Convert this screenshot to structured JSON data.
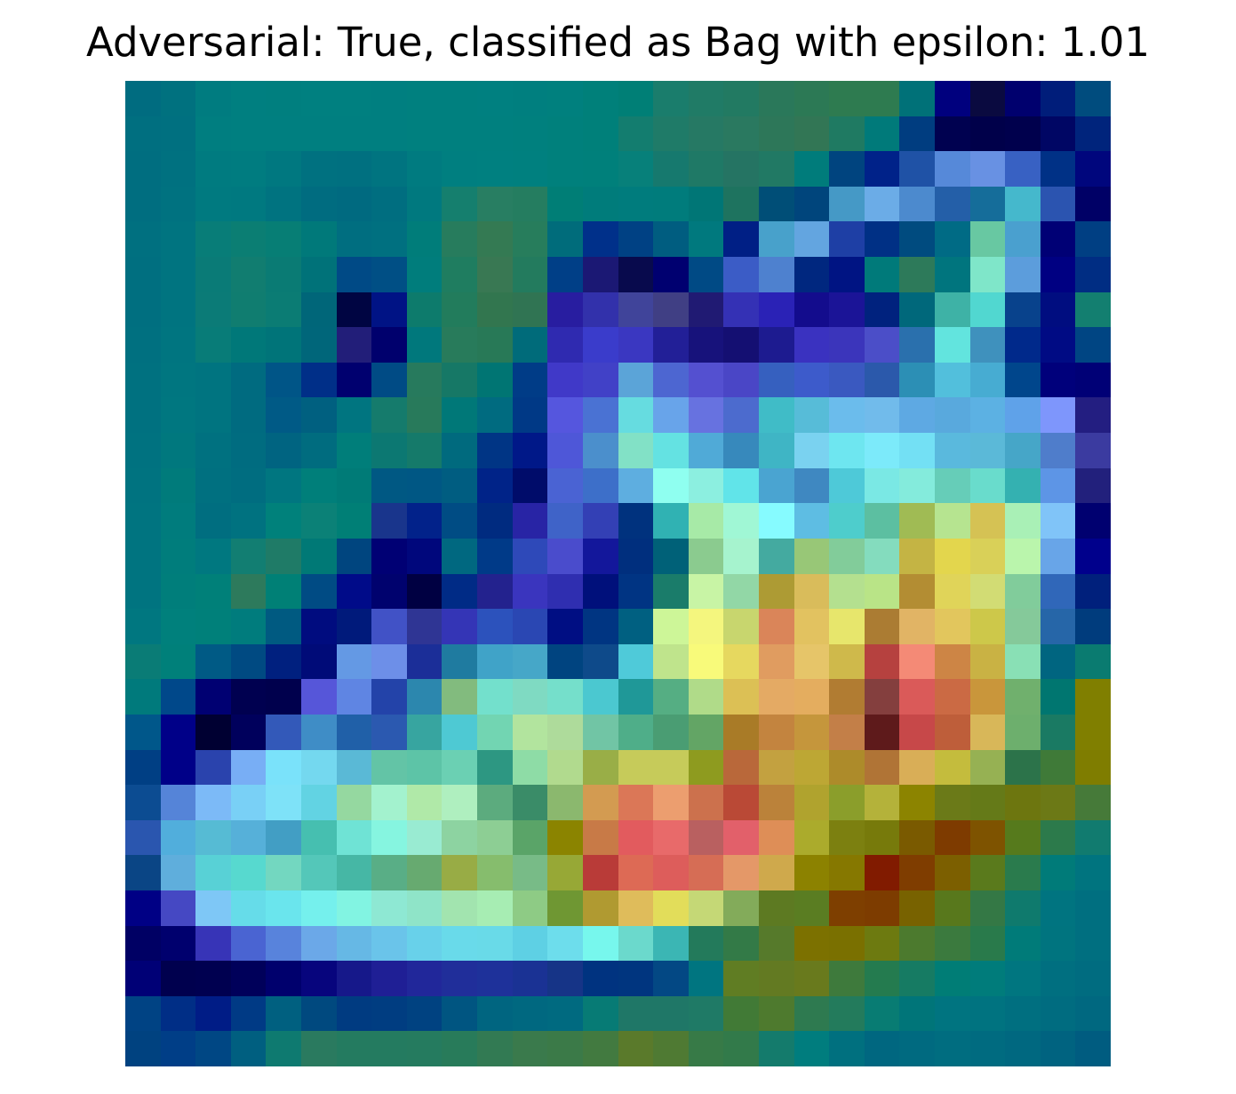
{
  "chart_data": {
    "type": "heatmap",
    "title": "Adversarial: True, classified as Bag with epsilon: 1.01",
    "xlabel": "",
    "ylabel": "",
    "grid": false,
    "axes_visible": false,
    "rows": 28,
    "cols": 28,
    "values": [
      [
        "#006c80",
        "#00717f",
        "#007c80",
        "#007f80",
        "#007f7f",
        "#008080",
        "#008080",
        "#007f80",
        "#00807f",
        "#00807f",
        "#008080",
        "#007f7f",
        "#00807e",
        "#00807a",
        "#007f76",
        "#1a7d6c",
        "#207b66",
        "#227a62",
        "#2a785a",
        "#2c7955",
        "#2e7b50",
        "#2e7b50",
        "#007178",
        "#00007e",
        "#0a0a40",
        "#00006e",
        "#001d7a",
        "#004c7e"
      ],
      [
        "#006f80",
        "#007080",
        "#007e80",
        "#007f80",
        "#007f80",
        "#007f80",
        "#007f80",
        "#007f80",
        "#00807f",
        "#00807f",
        "#00807f",
        "#00807e",
        "#00807c",
        "#00807a",
        "#137d6f",
        "#1f7b68",
        "#267964",
        "#2a7960",
        "#2d7759",
        "#327655",
        "#1f7a62",
        "#007a7a",
        "#003d80",
        "#000150",
        "#00004a",
        "#00004d",
        "#000664",
        "#00247c"
      ],
      [
        "#006e80",
        "#007180",
        "#007b80",
        "#007c80",
        "#007880",
        "#007180",
        "#007080",
        "#007480",
        "#007b80",
        "#007f80",
        "#008080",
        "#00807f",
        "#00807c",
        "#00807b",
        "#07807a",
        "#16796e",
        "#1f7966",
        "#257463",
        "#217964",
        "#007c7b",
        "#00447f",
        "#002289",
        "#1f52a6",
        "#5689d9",
        "#6891e3",
        "#3861c3",
        "#003186",
        "#00067d"
      ],
      [
        "#006e80",
        "#007280",
        "#007a80",
        "#007980",
        "#007380",
        "#006c80",
        "#006a80",
        "#006e80",
        "#00797f",
        "#157f6e",
        "#287e62",
        "#257d60",
        "#007e76",
        "#007c7b",
        "#007c7d",
        "#007c7c",
        "#007676",
        "#1e735f",
        "#004e77",
        "#00457c",
        "#4599c6",
        "#6bace7",
        "#4c8ace",
        "#245fa8",
        "#156d9a",
        "#45b8cc",
        "#2b54b0",
        "#000066"
      ],
      [
        "#007080",
        "#007480",
        "#087d78",
        "#0b7e73",
        "#077e75",
        "#00797a",
        "#006e80",
        "#007080",
        "#007d7a",
        "#277c5d",
        "#347a53",
        "#277d5c",
        "#006c7b",
        "#00308a",
        "#004184",
        "#005d80",
        "#00797e",
        "#001f85",
        "#48a1cb",
        "#63a5e0",
        "#1e3fa5",
        "#003085",
        "#004b7f",
        "#006b85",
        "#68c8a2",
        "#4aa0cf",
        "#000075",
        "#003f83"
      ],
      [
        "#006f80",
        "#007480",
        "#0a7b77",
        "#117d70",
        "#0a7b74",
        "#007279",
        "#004a86",
        "#004f85",
        "#007d7c",
        "#1f7d60",
        "#397853",
        "#237b5e",
        "#003f87",
        "#1b1874",
        "#080a4d",
        "#000070",
        "#004a85",
        "#3b5cc6",
        "#4e81cf",
        "#00277f",
        "#001483",
        "#007a7a",
        "#2d7a5a",
        "#00757e",
        "#7fe6c9",
        "#5c9ddc",
        "#000082",
        "#002d83"
      ],
      [
        "#006f80",
        "#007480",
        "#0b7b77",
        "#107d70",
        "#0b7c74",
        "#006679",
        "#000542",
        "#001385",
        "#0d7b6c",
        "#227c5c",
        "#32764f",
        "#307453",
        "#281da0",
        "#3231ab",
        "#40449a",
        "#403f84",
        "#201a73",
        "#3431b5",
        "#2a22b6",
        "#130c8d",
        "#1b1497",
        "#00227e",
        "#00687b",
        "#3eb2a6",
        "#51d7d0",
        "#08428c",
        "#000d80",
        "#137f70"
      ],
      [
        "#007080",
        "#007580",
        "#087c78",
        "#007879",
        "#007479",
        "#00667a",
        "#221e79",
        "#00006d",
        "#00787c",
        "#287b5b",
        "#287957",
        "#006b7a",
        "#2f2ab0",
        "#3a3ccb",
        "#3a37c1",
        "#221f97",
        "#17127b",
        "#140f72",
        "#1d1b90",
        "#3a32c0",
        "#3b35bb",
        "#4b4ec8",
        "#2a70ad",
        "#62e4de",
        "#3f91bd",
        "#00298b",
        "#000b84",
        "#004583"
      ],
      [
        "#007180",
        "#007680",
        "#007480",
        "#006b80",
        "#005587",
        "#002f88",
        "#00006f",
        "#004b85",
        "#277a5d",
        "#167866",
        "#007573",
        "#003c87",
        "#4039c8",
        "#4141c7",
        "#5ba4d8",
        "#4d66d1",
        "#5450d0",
        "#4a46c6",
        "#3660bf",
        "#3d5bcb",
        "#3a59c0",
        "#2b59ab",
        "#2c8fb5",
        "#52bfdc",
        "#47acd2",
        "#00468c",
        "#00007b",
        "#000076"
      ],
      [
        "#007180",
        "#007780",
        "#007480",
        "#006b80",
        "#005a86",
        "#006080",
        "#007580",
        "#157b6c",
        "#287a5b",
        "#007878",
        "#006b80",
        "#003986",
        "#5556de",
        "#4a72d3",
        "#66dce0",
        "#68a4ea",
        "#6772e0",
        "#4c6bce",
        "#40bcc7",
        "#57bcd8",
        "#6bbcec",
        "#71bbeb",
        "#5ea9e3",
        "#59a9dd",
        "#5cb1e3",
        "#5fa2e9",
        "#7e96fc",
        "#231e81"
      ],
      [
        "#007280",
        "#00787e",
        "#007180",
        "#006c80",
        "#006481",
        "#006c7f",
        "#007e7a",
        "#0c7872",
        "#157a6a",
        "#006a7e",
        "#003585",
        "#001888",
        "#4e57d8",
        "#4b8fcc",
        "#82e1c6",
        "#64e2e2",
        "#50aad7",
        "#3789bc",
        "#3fb5c5",
        "#7ad2f0",
        "#6ee6f0",
        "#7ceafa",
        "#73e0f4",
        "#5ab9dd",
        "#5bb9d8",
        "#46a6c8",
        "#4f7dcb",
        "#3b3ba0"
      ],
      [
        "#007380",
        "#007b7b",
        "#007080",
        "#006d80",
        "#007680",
        "#007f7a",
        "#007b77",
        "#005883",
        "#005784",
        "#005d81",
        "#002388",
        "#000c6a",
        "#4a63d3",
        "#3d6fc9",
        "#5eaee0",
        "#8ffff0",
        "#8cefe0",
        "#61e4e9",
        "#4aa4d1",
        "#3f88c1",
        "#4ec9d8",
        "#7ae8e4",
        "#84ebdc",
        "#66cdb8",
        "#69dccc",
        "#34b1b1",
        "#5d95e6",
        "#22207c"
      ],
      [
        "#007480",
        "#007c7d",
        "#006e80",
        "#007280",
        "#00817b",
        "#0b8177",
        "#007f76",
        "#19358c",
        "#02228a",
        "#004c84",
        "#002b80",
        "#2824a5",
        "#3f63c8",
        "#3340b5",
        "#00327e",
        "#30b2b3",
        "#a7eaa7",
        "#a0f7d5",
        "#86fbff",
        "#5ebde3",
        "#4ecdcc",
        "#5cbfa1",
        "#a0bb54",
        "#b6e490",
        "#d5c254",
        "#a9f0b6",
        "#80c4f8",
        "#000070"
      ],
      [
        "#007480",
        "#007d7c",
        "#007880",
        "#127e72",
        "#1f7b67",
        "#007976",
        "#00457f",
        "#000074",
        "#00077c",
        "#006880",
        "#003a88",
        "#2e49b9",
        "#4a4ccc",
        "#13179b",
        "#002f7e",
        "#006178",
        "#8bcb8f",
        "#a6f3ce",
        "#44aaa0",
        "#98c777",
        "#82cc9a",
        "#84dcbe",
        "#c4b444",
        "#e3d64d",
        "#d9d058",
        "#baf5ac",
        "#68a5e8",
        "#00008c"
      ],
      [
        "#007480",
        "#007e7b",
        "#008079",
        "#2d7a5c",
        "#008076",
        "#004b84",
        "#000b89",
        "#00026e",
        "#000042",
        "#002b86",
        "#23228e",
        "#3a35be",
        "#2f2eb0",
        "#00107b",
        "#003483",
        "#1a7c6a",
        "#c8f4a5",
        "#92d7a6",
        "#ad9b34",
        "#d9bc5b",
        "#b4e08f",
        "#b9e487",
        "#b38d33",
        "#e0d459",
        "#d2dc74",
        "#81cc9b",
        "#3067b9",
        "#00207c"
      ],
      [
        "#007780",
        "#00807c",
        "#00807a",
        "#007c7d",
        "#005a81",
        "#000c7f",
        "#001a7b",
        "#4152c6",
        "#2f3594",
        "#3435b6",
        "#2c52bc",
        "#2a47b3",
        "#000e83",
        "#003582",
        "#006081",
        "#cdf698",
        "#f4f67e",
        "#c8d66e",
        "#da8559",
        "#e2c260",
        "#e7e66c",
        "#ab7c33",
        "#e1b465",
        "#e2c65d",
        "#cdc84a",
        "#85c99a",
        "#2666a8",
        "#003c7d"
      ],
      [
        "#0a7c76",
        "#00807a",
        "#005a85",
        "#004a82",
        "#00207f",
        "#000b78",
        "#6499e4",
        "#6d8fe8",
        "#1b2e98",
        "#1f7ba0",
        "#40a3c8",
        "#46a7c8",
        "#004480",
        "#0e4a8a",
        "#4fcad9",
        "#bfe48c",
        "#f8fa7a",
        "#e6d85f",
        "#e09c60",
        "#e6c569",
        "#cfb94b",
        "#b6413f",
        "#f48a76",
        "#cd8545",
        "#c9b244",
        "#89e0b5",
        "#006580",
        "#0a7b70"
      ],
      [
        "#007a7c",
        "#00488a",
        "#000072",
        "#000050",
        "#00004d",
        "#5656d9",
        "#5f85e3",
        "#2343a9",
        "#2c87ae",
        "#82bb7e",
        "#73e0cc",
        "#7fdac2",
        "#75dfcb",
        "#4bc8d0",
        "#1f9898",
        "#55ae83",
        "#b0db89",
        "#dcc055",
        "#e4aa64",
        "#e4ad5f",
        "#b17c32",
        "#843f3e",
        "#da5a59",
        "#cb6a44",
        "#c9963b",
        "#70b06d",
        "#007670",
        "#807f00"
      ],
      [
        "#00578a",
        "#000088",
        "#000032",
        "#00005c",
        "#3359b9",
        "#3f8dc6",
        "#2060a8",
        "#2b59b0",
        "#37a5a0",
        "#4ec9d3",
        "#72d5b2",
        "#b2e49e",
        "#aedb9b",
        "#71c5a5",
        "#4fae89",
        "#4a9d73",
        "#63a565",
        "#a97b27",
        "#c3843f",
        "#c5963c",
        "#c37f48",
        "#5e1a1b",
        "#c74849",
        "#be5e3a",
        "#d8b759",
        "#6daf6d",
        "#1a7a63",
        "#807f00"
      ],
      [
        "#003f84",
        "#000088",
        "#2a43ad",
        "#78aef5",
        "#7ae2fa",
        "#74d8ef",
        "#5ab9d6",
        "#63c4a6",
        "#5dc4a7",
        "#6bd0b3",
        "#2d9782",
        "#8edca6",
        "#b1da8e",
        "#99ae47",
        "#c6cb5a",
        "#c6cb5a",
        "#8e9b1f",
        "#b9683a",
        "#c3a140",
        "#bda734",
        "#ad8b2a",
        "#b07436",
        "#d9ae57",
        "#c4bc3d",
        "#96b153",
        "#2c734a",
        "#3f7a38",
        "#7f7d00"
      ],
      [
        "#0c4c92",
        "#5584d8",
        "#7cbaf7",
        "#79d0f6",
        "#7ee2f8",
        "#62d3e3",
        "#95d8a0",
        "#a3f2ce",
        "#b0e9a8",
        "#afefbf",
        "#5cab7e",
        "#3a8c68",
        "#8bb86e",
        "#d39b51",
        "#db7757",
        "#ec9e6f",
        "#cc714d",
        "#ba4936",
        "#bb823a",
        "#b0a32e",
        "#8b9e2b",
        "#b4b23a",
        "#8c8400",
        "#6b7a18",
        "#657a18",
        "#6d760f",
        "#6c7916",
        "#467a39"
      ],
      [
        "#2a56af",
        "#51aedc",
        "#56bbd4",
        "#56b0d9",
        "#429ec4",
        "#46bfb0",
        "#6fe3d5",
        "#86f5e0",
        "#99ebd2",
        "#8dd3a1",
        "#8dce94",
        "#5aa468",
        "#8b8400",
        "#c87a47",
        "#e25b5e",
        "#e86a6a",
        "#b96060",
        "#e2606a",
        "#de8e57",
        "#abab2c",
        "#7c8010",
        "#777a0b",
        "#7a5a00",
        "#7e3b00",
        "#7e5300",
        "#567a1c",
        "#2c7a4b",
        "#117b6f"
      ],
      [
        "#0a4585",
        "#5faedc",
        "#58d1d6",
        "#57d9cf",
        "#73d7c0",
        "#54c7b9",
        "#46b7a5",
        "#59ae86",
        "#67aa70",
        "#98ac45",
        "#86bd6d",
        "#78bb87",
        "#97a836",
        "#b93b38",
        "#dd6a55",
        "#dd5d5b",
        "#d66d55",
        "#e49868",
        "#cfa94c",
        "#8c8200",
        "#867800",
        "#811b00",
        "#7f3d00",
        "#7c5f00",
        "#5a7a1c",
        "#2a7b4d",
        "#007b79",
        "#00747f"
      ],
      [
        "#000085",
        "#4548c3",
        "#7ec7f6",
        "#66dce9",
        "#6ae5ed",
        "#75f0ed",
        "#82f4e2",
        "#8ee8d3",
        "#8fe4c8",
        "#a2e4af",
        "#a7edb3",
        "#8ecb85",
        "#6f9733",
        "#b09a31",
        "#dfbc5b",
        "#e2dd5a",
        "#c5d876",
        "#83ab5a",
        "#5d7a22",
        "#5a7d22",
        "#7e3f00",
        "#7d3c00",
        "#786200",
        "#58781c",
        "#347845",
        "#0f7a6d",
        "#007480",
        "#006f80"
      ],
      [
        "#000064",
        "#00006e",
        "#3734b7",
        "#4a64d2",
        "#5883dc",
        "#6ba8e8",
        "#66b8e5",
        "#6ac4ea",
        "#68d1ea",
        "#69daea",
        "#69dae8",
        "#5ed0e4",
        "#6dddec",
        "#77f7ed",
        "#6bd9cc",
        "#3bb6b4",
        "#237a5b",
        "#337a47",
        "#567a2b",
        "#7c7100",
        "#7a7000",
        "#6d7a10",
        "#4c7a2e",
        "#3b7a3e",
        "#297a4b",
        "#007b79",
        "#00747f",
        "#006f80"
      ],
      [
        "#000076",
        "#00004e",
        "#000050",
        "#00005a",
        "#00006d",
        "#07057d",
        "#16188a",
        "#1f1f95",
        "#21279a",
        "#202e9a",
        "#1e319a",
        "#1a3294",
        "#163487",
        "#003380",
        "#00357f",
        "#034884",
        "#007580",
        "#607d23",
        "#637a22",
        "#697a1d",
        "#3e7a3c",
        "#247b4f",
        "#167b63",
        "#007d76",
        "#007c7b",
        "#007680",
        "#006f80",
        "#006c80"
      ],
      [
        "#004384",
        "#002e86",
        "#001c86",
        "#003a85",
        "#006080",
        "#00497f",
        "#003b81",
        "#003d81",
        "#004281",
        "#005581",
        "#006580",
        "#006880",
        "#006a80",
        "#077b75",
        "#1f7767",
        "#1f7767",
        "#1f7a66",
        "#417a36",
        "#4e7a2e",
        "#2e7a50",
        "#237b5c",
        "#087c73",
        "#007579",
        "#007480",
        "#007380",
        "#006f80",
        "#006c80",
        "#006880"
      ],
      [
        "#004280",
        "#003e87",
        "#004784",
        "#005f80",
        "#0e7a70",
        "#2a7a5f",
        "#247b60",
        "#247b60",
        "#257b5f",
        "#287b5a",
        "#327a53",
        "#3a7a4c",
        "#3b7a48",
        "#427a40",
        "#5a7a2b",
        "#4f7a33",
        "#377a47",
        "#327a4a",
        "#147b6c",
        "#007d7e",
        "#00707f",
        "#006780",
        "#006a80",
        "#006d80",
        "#006b80",
        "#006880",
        "#006380",
        "#005c80"
      ]
    ]
  }
}
